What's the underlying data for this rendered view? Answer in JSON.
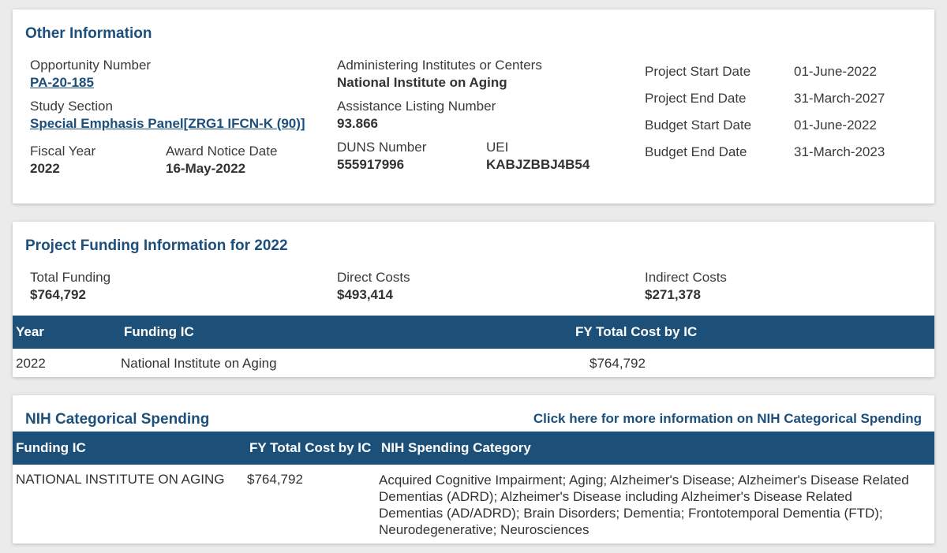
{
  "other": {
    "title": "Other Information",
    "opportunity_label": "Opportunity Number",
    "opportunity_value": "PA-20-185",
    "study_label": "Study Section",
    "study_value": "Special Emphasis Panel[ZRG1 IFCN-K (90)]",
    "fiscal_label": "Fiscal Year",
    "fiscal_value": "2022",
    "award_label": "Award Notice Date",
    "award_value": "16-May-2022",
    "admin_label": "Administering Institutes or Centers",
    "admin_value": "National Institute on Aging",
    "assistance_label": "Assistance Listing Number",
    "assistance_value": "93.866",
    "duns_label": "DUNS Number",
    "duns_value": "555917996",
    "uei_label": "UEI",
    "uei_value": "KABJZBBJ4B54",
    "dates": [
      {
        "label": "Project Start Date",
        "value": "01-June-2022"
      },
      {
        "label": "Project End Date",
        "value": "31-March-2027"
      },
      {
        "label": "Budget Start Date",
        "value": "01-June-2022"
      },
      {
        "label": "Budget End Date",
        "value": "31-March-2023"
      }
    ]
  },
  "funding": {
    "title": "Project Funding Information for 2022",
    "total_label": "Total Funding",
    "total_value": "$764,792",
    "direct_label": "Direct Costs",
    "direct_value": "$493,414",
    "indirect_label": "Indirect Costs",
    "indirect_value": "$271,378",
    "headers": [
      "Year",
      "Funding IC",
      "FY Total Cost by IC"
    ],
    "rows": [
      {
        "year": "2022",
        "ic": "National Institute on Aging",
        "cost": "$764,792"
      }
    ]
  },
  "spending": {
    "title": "NIH Categorical Spending",
    "link": "Click here for more information on NIH Categorical Spending",
    "headers": [
      "Funding IC",
      "FY Total Cost by IC",
      "NIH Spending Category"
    ],
    "row": {
      "ic": "NATIONAL INSTITUTE ON AGING",
      "cost": "$764,792",
      "category_lines": [
        "Acquired Cognitive Impairment; Aging; Alzheimer's Disease; Alzheimer's Disease Related",
        "Dementias (ADRD); Alzheimer's Disease including Alzheimer's Disease Related",
        "Dementias (AD/ADRD); Brain Disorders; Dementia; Frontotemporal Dementia (FTD);",
        "Neurodegenerative; Neurosciences"
      ]
    }
  },
  "colors": {
    "accent": "#1c4f7c",
    "header_bg": "#1d5079",
    "page_bg": "#ebebeb"
  }
}
